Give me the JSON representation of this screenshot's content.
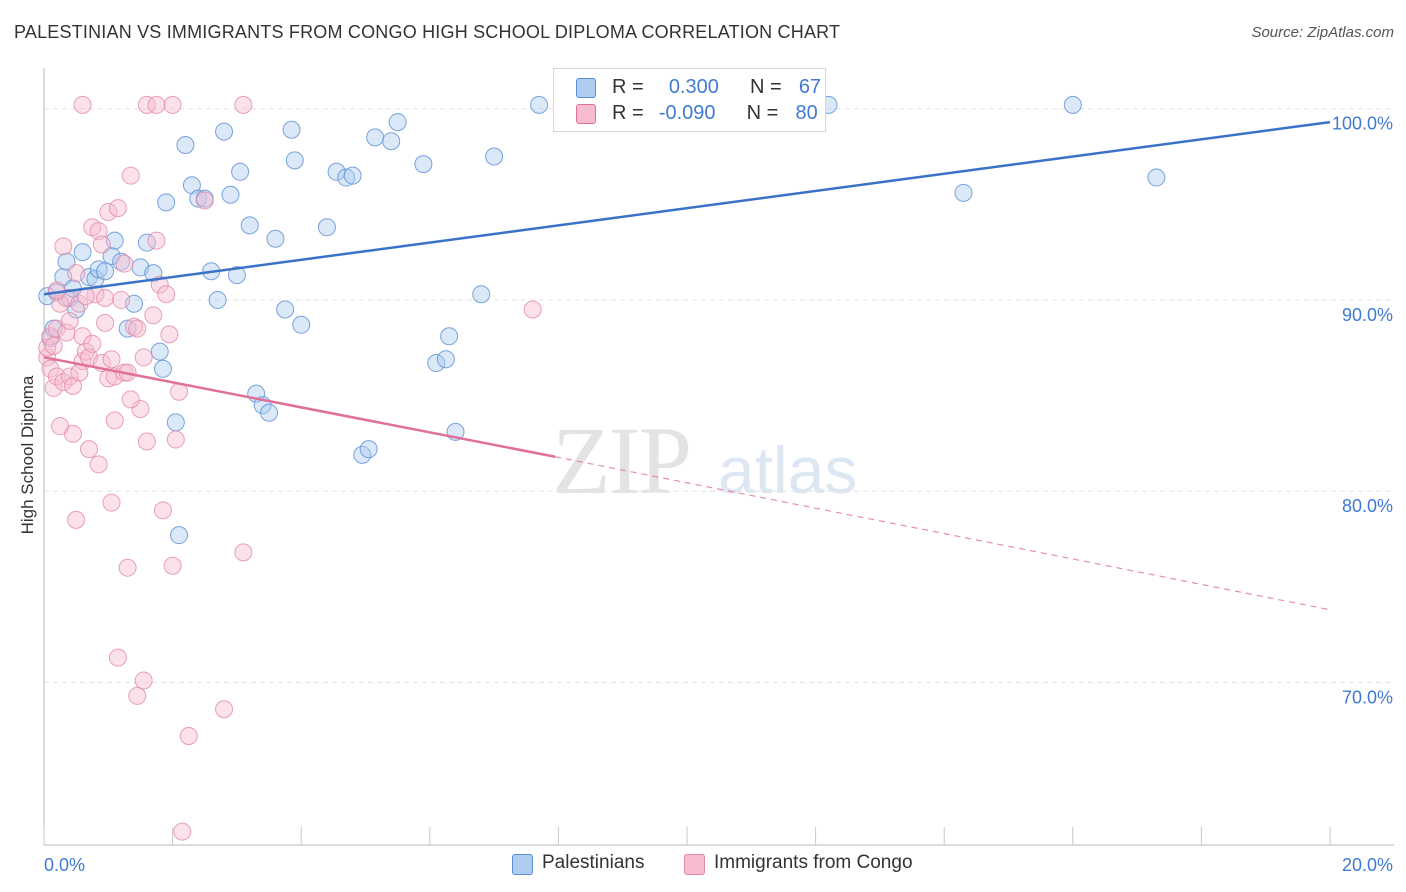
{
  "header": {
    "title": "PALESTINIAN VS IMMIGRANTS FROM CONGO HIGH SCHOOL DIPLOMA CORRELATION CHART",
    "source": "Source: ZipAtlas.com"
  },
  "watermark": {
    "zip": "ZIP",
    "atlas": "atlas"
  },
  "legend": {
    "rows": [
      {
        "r_label": "R =",
        "r_value": "0.300",
        "n_label": "N =",
        "n_value": "67",
        "color": "#aecbf0",
        "stroke": "#5b8fd4"
      },
      {
        "r_label": "R =",
        "r_value": "-0.090",
        "n_label": "N =",
        "n_value": "80",
        "color": "#f7bcd0",
        "stroke": "#e0709a"
      }
    ]
  },
  "bottom_legend": {
    "palestinians": "Palestinians",
    "congo": "Immigrants from Congo"
  },
  "colors": {
    "blue_fill": "#aecbf0",
    "blue_stroke": "#5b8fd4",
    "blue_line": "#3a72c8",
    "pink_fill": "#f7bcd0",
    "pink_stroke": "#e389a9",
    "pink_line": "#e0709a",
    "axis_text": "#3f7bd4",
    "grid": "#e4e4e4"
  },
  "chart_data": {
    "type": "scatter",
    "title": "PALESTINIAN VS IMMIGRANTS FROM CONGO HIGH SCHOOL DIPLOMA CORRELATION CHART",
    "xlabel": "",
    "ylabel": "High School Diploma",
    "xlim": [
      0,
      20
    ],
    "ylim": [
      61.5,
      101.5
    ],
    "x_tick_labels": [
      "0.0%",
      "20.0%"
    ],
    "y_ticks": [
      70,
      80,
      90,
      100
    ],
    "y_tick_labels": [
      "70.0%",
      "80.0%",
      "90.0%",
      "100.0%"
    ],
    "grid": true,
    "series": [
      {
        "name": "Palestinians",
        "r": 0.3,
        "n": 67,
        "trend": {
          "x0": 0,
          "y0": 90.3,
          "x1": 20,
          "y1": 99.3,
          "style": "solid"
        },
        "points": [
          [
            0.05,
            90.2
          ],
          [
            0.1,
            88.0
          ],
          [
            0.15,
            88.5
          ],
          [
            0.2,
            90.4
          ],
          [
            0.3,
            91.2
          ],
          [
            0.35,
            92.0
          ],
          [
            0.4,
            90.1
          ],
          [
            0.45,
            90.6
          ],
          [
            0.5,
            89.5
          ],
          [
            0.6,
            92.5
          ],
          [
            0.7,
            91.2
          ],
          [
            0.8,
            91.1
          ],
          [
            0.85,
            91.6
          ],
          [
            0.95,
            91.5
          ],
          [
            1.05,
            92.3
          ],
          [
            1.1,
            93.1
          ],
          [
            1.2,
            92.0
          ],
          [
            1.3,
            88.5
          ],
          [
            1.4,
            89.8
          ],
          [
            1.5,
            91.7
          ],
          [
            1.6,
            93.0
          ],
          [
            1.7,
            91.4
          ],
          [
            1.8,
            87.3
          ],
          [
            1.85,
            86.4
          ],
          [
            1.9,
            95.1
          ],
          [
            2.05,
            83.6
          ],
          [
            2.1,
            77.7
          ],
          [
            2.2,
            98.1
          ],
          [
            2.3,
            96.0
          ],
          [
            2.4,
            95.3
          ],
          [
            2.5,
            95.3
          ],
          [
            2.6,
            91.5
          ],
          [
            2.7,
            90.0
          ],
          [
            2.8,
            98.8
          ],
          [
            2.9,
            95.5
          ],
          [
            3.0,
            91.3
          ],
          [
            3.05,
            96.7
          ],
          [
            3.2,
            93.9
          ],
          [
            3.3,
            85.1
          ],
          [
            3.4,
            84.5
          ],
          [
            3.5,
            84.1
          ],
          [
            3.6,
            93.2
          ],
          [
            3.75,
            89.5
          ],
          [
            3.85,
            98.9
          ],
          [
            3.9,
            97.3
          ],
          [
            4.0,
            88.7
          ],
          [
            4.4,
            93.8
          ],
          [
            4.55,
            96.7
          ],
          [
            4.7,
            96.4
          ],
          [
            4.8,
            96.5
          ],
          [
            4.95,
            81.9
          ],
          [
            5.05,
            82.2
          ],
          [
            5.15,
            98.5
          ],
          [
            5.4,
            98.3
          ],
          [
            5.5,
            99.3
          ],
          [
            5.9,
            97.1
          ],
          [
            6.1,
            86.7
          ],
          [
            6.25,
            86.9
          ],
          [
            6.3,
            88.1
          ],
          [
            6.4,
            83.1
          ],
          [
            6.8,
            90.3
          ],
          [
            7.0,
            97.5
          ],
          [
            7.7,
            100.2
          ],
          [
            12.2,
            100.2
          ],
          [
            14.3,
            95.6
          ],
          [
            17.3,
            96.4
          ],
          [
            16.0,
            100.2
          ]
        ]
      },
      {
        "name": "Immigrants from Congo",
        "r": -0.09,
        "n": 80,
        "trend": {
          "x0": 0,
          "y0": 87.0,
          "x1": 7.95,
          "y1": 81.8,
          "style": "solid",
          "dashed_to": {
            "x1": 20,
            "y1": 73.8
          }
        },
        "points": [
          [
            0.05,
            87.0
          ],
          [
            0.05,
            87.5
          ],
          [
            0.1,
            86.4
          ],
          [
            0.1,
            88.1
          ],
          [
            0.15,
            85.4
          ],
          [
            0.2,
            88.5
          ],
          [
            0.2,
            86.0
          ],
          [
            0.25,
            89.8
          ],
          [
            0.3,
            92.8
          ],
          [
            0.3,
            85.7
          ],
          [
            0.35,
            90.1
          ],
          [
            0.35,
            88.3
          ],
          [
            0.4,
            86.0
          ],
          [
            0.45,
            83.0
          ],
          [
            0.45,
            85.5
          ],
          [
            0.5,
            91.4
          ],
          [
            0.5,
            78.5
          ],
          [
            0.55,
            89.8
          ],
          [
            0.6,
            86.8
          ],
          [
            0.6,
            88.1
          ],
          [
            0.65,
            87.3
          ],
          [
            0.7,
            82.2
          ],
          [
            0.7,
            87.0
          ],
          [
            0.75,
            93.8
          ],
          [
            0.8,
            90.3
          ],
          [
            0.85,
            81.4
          ],
          [
            0.85,
            93.6
          ],
          [
            0.9,
            92.9
          ],
          [
            0.9,
            86.7
          ],
          [
            0.95,
            90.1
          ],
          [
            1.0,
            94.6
          ],
          [
            1.0,
            85.9
          ],
          [
            1.05,
            86.9
          ],
          [
            1.05,
            79.4
          ],
          [
            1.1,
            86.0
          ],
          [
            1.1,
            83.7
          ],
          [
            1.15,
            94.8
          ],
          [
            1.15,
            71.3
          ],
          [
            1.2,
            90.0
          ],
          [
            1.25,
            86.2
          ],
          [
            1.3,
            86.2
          ],
          [
            1.3,
            76.0
          ],
          [
            1.35,
            96.5
          ],
          [
            1.4,
            88.6
          ],
          [
            1.45,
            69.3
          ],
          [
            1.5,
            84.3
          ],
          [
            1.55,
            70.1
          ],
          [
            1.6,
            82.6
          ],
          [
            1.7,
            89.2
          ],
          [
            1.75,
            93.1
          ],
          [
            1.8,
            90.8
          ],
          [
            1.85,
            79.0
          ],
          [
            1.9,
            90.3
          ],
          [
            1.95,
            88.2
          ],
          [
            2.0,
            76.1
          ],
          [
            2.05,
            82.7
          ],
          [
            2.1,
            85.2
          ],
          [
            2.15,
            62.2
          ],
          [
            2.25,
            67.2
          ],
          [
            2.5,
            95.2
          ],
          [
            2.8,
            68.6
          ],
          [
            3.1,
            76.8
          ],
          [
            0.6,
            100.2
          ],
          [
            1.6,
            100.2
          ],
          [
            1.75,
            100.2
          ],
          [
            2.0,
            100.2
          ],
          [
            3.1,
            100.2
          ],
          [
            0.25,
            83.4
          ],
          [
            0.15,
            87.6
          ],
          [
            0.4,
            88.9
          ],
          [
            0.55,
            86.2
          ],
          [
            0.65,
            90.2
          ],
          [
            0.75,
            87.7
          ],
          [
            0.95,
            88.8
          ],
          [
            1.25,
            91.9
          ],
          [
            1.35,
            84.8
          ],
          [
            1.45,
            88.5
          ],
          [
            1.55,
            87.0
          ],
          [
            7.6,
            89.5
          ],
          [
            0.2,
            90.5
          ]
        ]
      }
    ]
  }
}
